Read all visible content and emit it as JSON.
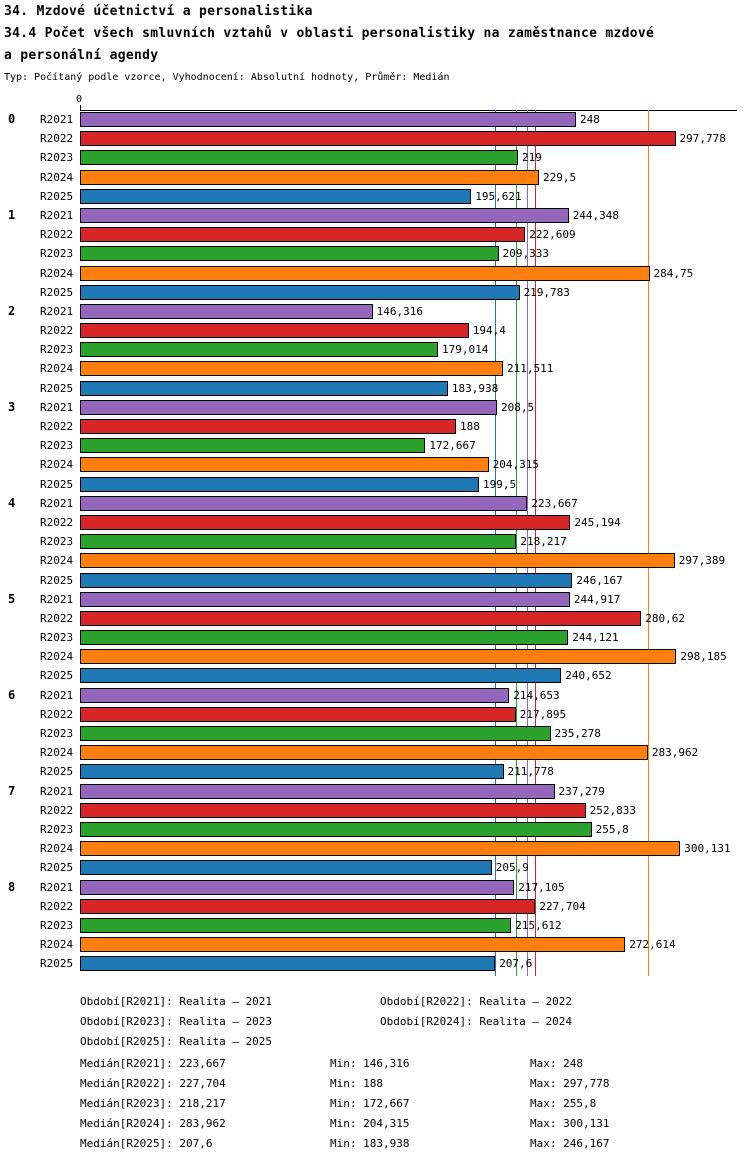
{
  "header": {
    "title": "34. Mzdové účetnictví a personalistika",
    "subtitle_lines": [
      "34.4 Počet všech smluvních vztahů v oblasti personalistiky na zaměstnance mzdové",
      "a personální agendy"
    ],
    "meta": "Typ: Počítaný podle vzorce, Vyhodnocení: Absolutní hodnoty, Průměr: Medián"
  },
  "chart_data": {
    "type": "bar",
    "orientation": "horizontal",
    "x_axis": {
      "zero_label": "0",
      "min": 0,
      "max": 328.5,
      "grid": false
    },
    "series": [
      "R2021",
      "R2022",
      "R2023",
      "R2024",
      "R2025"
    ],
    "series_colors": [
      "#9467bd",
      "#d62728",
      "#2ca02c",
      "#ff7f0e",
      "#1f77b4"
    ],
    "groups": [
      {
        "label": "0",
        "values": [
          "248",
          "297,778",
          "219",
          "229,5",
          "195,621"
        ]
      },
      {
        "label": "1",
        "values": [
          "244,348",
          "222,609",
          "209,333",
          "284,75",
          "219,783"
        ]
      },
      {
        "label": "2",
        "values": [
          "146,316",
          "194,4",
          "179,014",
          "211,511",
          "183,938"
        ]
      },
      {
        "label": "3",
        "values": [
          "208,5",
          "188",
          "172,667",
          "204,315",
          "199,5"
        ]
      },
      {
        "label": "4",
        "values": [
          "223,667",
          "245,194",
          "218,217",
          "297,389",
          "246,167"
        ]
      },
      {
        "label": "5",
        "values": [
          "244,917",
          "280,62",
          "244,121",
          "298,185",
          "240,652"
        ]
      },
      {
        "label": "6",
        "values": [
          "214,653",
          "217,895",
          "235,278",
          "283,962",
          "211,778"
        ]
      },
      {
        "label": "7",
        "values": [
          "237,279",
          "252,833",
          "255,8",
          "300,131",
          "205,9"
        ]
      },
      {
        "label": "8",
        "values": [
          "217,105",
          "227,704",
          "215,612",
          "272,614",
          "207,6"
        ]
      }
    ],
    "median_lines": [
      {
        "series": "R2021",
        "value": "223,667"
      },
      {
        "series": "R2022",
        "value": "227,704"
      },
      {
        "series": "R2023",
        "value": "218,217"
      },
      {
        "series": "R2024",
        "value": "283,962"
      },
      {
        "series": "R2025",
        "value": "207,6"
      }
    ]
  },
  "legend": {
    "items": [
      "Období[R2021]: Realita – 2021",
      "Období[R2022]: Realita – 2022",
      "Období[R2023]: Realita – 2023",
      "Období[R2024]: Realita – 2024",
      "Období[R2025]: Realita – 2025"
    ]
  },
  "stats": {
    "rows": [
      {
        "median": "Medián[R2021]: 223,667",
        "min": "Min: 146,316",
        "max": "Max: 248"
      },
      {
        "median": "Medián[R2022]: 227,704",
        "min": "Min: 188",
        "max": "Max: 297,778"
      },
      {
        "median": "Medián[R2023]: 218,217",
        "min": "Min: 172,667",
        "max": "Max: 255,8"
      },
      {
        "median": "Medián[R2024]: 283,962",
        "min": "Min: 204,315",
        "max": "Max: 300,131"
      },
      {
        "median": "Medián[R2025]: 207,6",
        "min": "Min: 183,938",
        "max": "Max: 246,167"
      }
    ]
  }
}
